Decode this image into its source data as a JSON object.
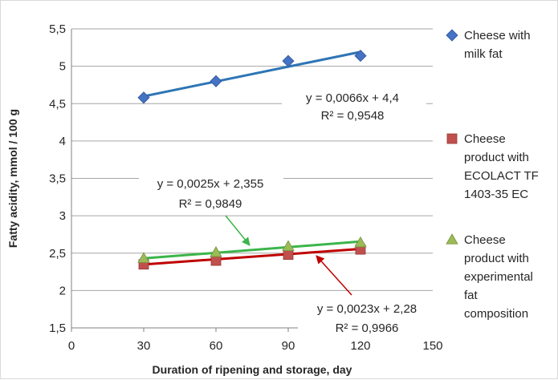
{
  "chart_data": {
    "type": "scatter",
    "xlabel": "Duration of ripening and storage, day",
    "ylabel": "Fatty acidity, mmol / 100 g",
    "xlim": [
      0,
      150
    ],
    "ylim": [
      1.5,
      5.5
    ],
    "x_ticks": [
      "0",
      "30",
      "60",
      "90",
      "120",
      "150"
    ],
    "y_ticks": [
      "1,5",
      "2",
      "2,5",
      "3",
      "3,5",
      "4",
      "4,5",
      "5",
      "5,5"
    ],
    "grid": "horizontal",
    "legend_position": "right",
    "series": [
      {
        "name_lines": [
          "Cheese with",
          "milk fat"
        ],
        "marker": "diamond",
        "color": "#4472c4",
        "line_color": "#2e75b6",
        "x": [
          30,
          60,
          90,
          120
        ],
        "y": [
          4.58,
          4.8,
          5.07,
          5.14
        ],
        "trendline": {
          "slope": 0.0066,
          "intercept": 4.4,
          "equation": "y = 0,0066x + 4,4",
          "r2": "R² = 0,9548"
        }
      },
      {
        "name_lines": [
          "Cheese",
          "product with",
          "ECOLACT TF",
          "1403-35 EC"
        ],
        "marker": "square",
        "color": "#c0504d",
        "line_color": "#c00000",
        "x": [
          30,
          60,
          90,
          120
        ],
        "y": [
          2.35,
          2.4,
          2.48,
          2.55
        ],
        "trendline": {
          "slope": 0.0023,
          "intercept": 2.28,
          "equation": "y = 0,0023x + 2,28",
          "r2": "R² = 0,9966"
        }
      },
      {
        "name_lines": [
          "Cheese",
          "product with",
          "experimental",
          "fat",
          "composition"
        ],
        "marker": "triangle",
        "color": "#9bbb59",
        "line_color": "#3cb54a",
        "x": [
          30,
          60,
          90,
          120
        ],
        "y": [
          2.43,
          2.51,
          2.59,
          2.64
        ],
        "trendline": {
          "slope": 0.0025,
          "intercept": 2.355,
          "equation": "y = 0,0025x + 2,355",
          "r2": "R² = 0,9849"
        }
      }
    ]
  }
}
